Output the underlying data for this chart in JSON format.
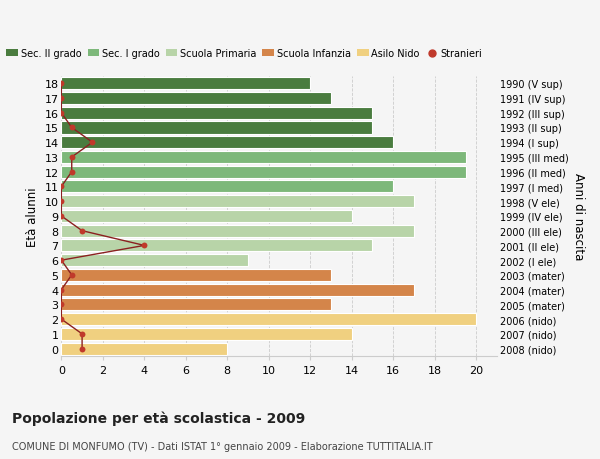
{
  "ages_desc": [
    18,
    17,
    16,
    15,
    14,
    13,
    12,
    11,
    10,
    9,
    8,
    7,
    6,
    5,
    4,
    3,
    2,
    1,
    0
  ],
  "right_labels": [
    "1990 (V sup)",
    "1991 (IV sup)",
    "1992 (III sup)",
    "1993 (II sup)",
    "1994 (I sup)",
    "1995 (III med)",
    "1996 (II med)",
    "1997 (I med)",
    "1998 (V ele)",
    "1999 (IV ele)",
    "2000 (III ele)",
    "2001 (II ele)",
    "2002 (I ele)",
    "2003 (mater)",
    "2004 (mater)",
    "2005 (mater)",
    "2006 (nido)",
    "2007 (nido)",
    "2008 (nido)"
  ],
  "bar_values_desc": [
    12,
    13,
    15,
    15,
    16,
    19.5,
    19.5,
    16,
    17,
    14,
    17,
    15,
    9,
    13,
    17,
    13,
    20,
    14,
    8
  ],
  "bar_colors_desc": [
    "#4a7c3f",
    "#4a7c3f",
    "#4a7c3f",
    "#4a7c3f",
    "#4a7c3f",
    "#7db87a",
    "#7db87a",
    "#7db87a",
    "#b8d4a8",
    "#b8d4a8",
    "#b8d4a8",
    "#b8d4a8",
    "#b8d4a8",
    "#d4854a",
    "#d4854a",
    "#d4854a",
    "#f0d080",
    "#f0d080",
    "#f0d080"
  ],
  "stranieri_values_desc": [
    0,
    0,
    0,
    0.5,
    1.5,
    0.5,
    0.5,
    0,
    0,
    0,
    1,
    4,
    0,
    0.5,
    0,
    0,
    0,
    1,
    1
  ],
  "legend_labels": [
    "Sec. II grado",
    "Sec. I grado",
    "Scuola Primaria",
    "Scuola Infanzia",
    "Asilo Nido",
    "Stranieri"
  ],
  "legend_colors": [
    "#4a7c3f",
    "#7db87a",
    "#b8d4a8",
    "#d4854a",
    "#f0d080",
    "#c0392b"
  ],
  "ylabel_left": "Età alunni",
  "ylabel_right": "Anni di nascita",
  "title": "Popolazione per età scolastica - 2009",
  "subtitle": "COMUNE DI MONFUMO (TV) - Dati ISTAT 1° gennaio 2009 - Elaborazione TUTTITALIA.IT",
  "xlim": [
    0,
    21
  ],
  "xticks": [
    0,
    2,
    4,
    6,
    8,
    10,
    12,
    14,
    16,
    18,
    20
  ],
  "bar_height": 0.82,
  "bg_color": "#f5f5f5",
  "grid_color": "#cccccc",
  "stranieri_line_color": "#8b2020",
  "stranieri_dot_color": "#c0392b"
}
